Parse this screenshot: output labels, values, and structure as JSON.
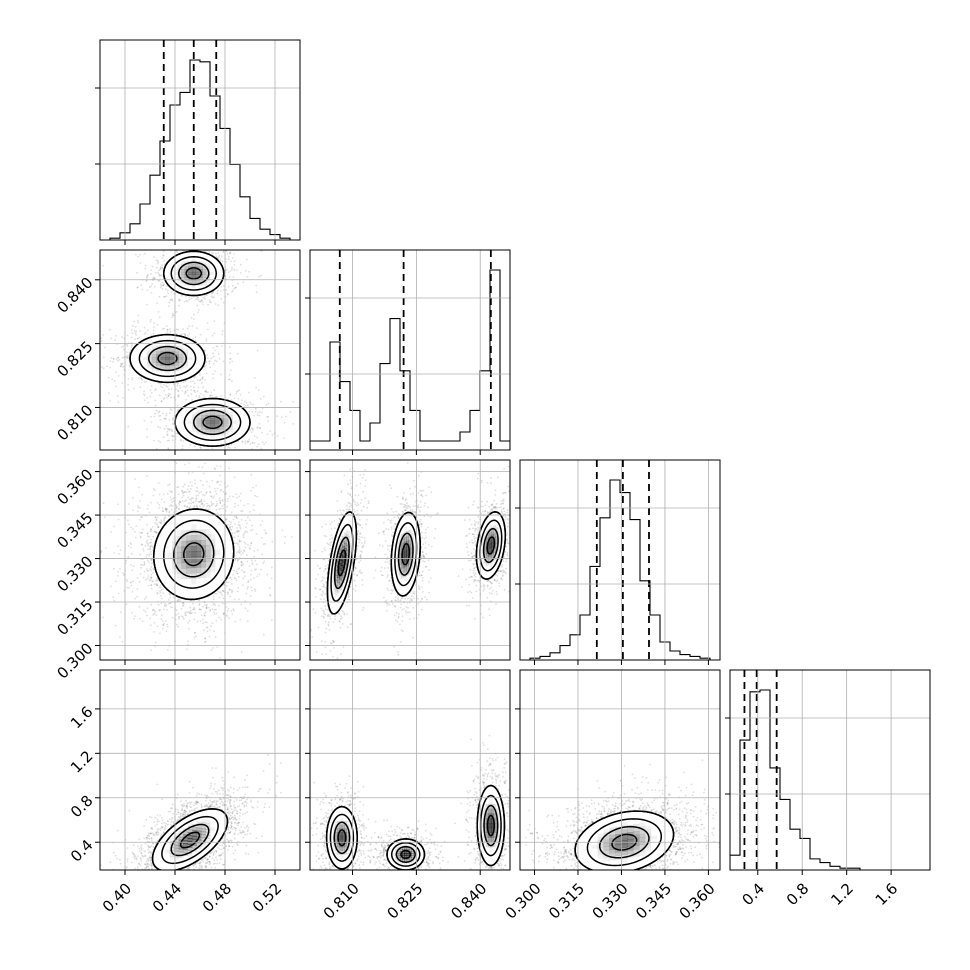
{
  "chart_data": {
    "type": "corner",
    "title": "",
    "grid": true,
    "parameters": [
      {
        "index": 0,
        "range": [
          0.38,
          0.54
        ],
        "ticks": [
          0.4,
          0.44,
          0.48,
          0.52
        ],
        "tick_labels": [
          "0.40",
          "0.44",
          "0.48",
          "0.52"
        ]
      },
      {
        "index": 1,
        "range": [
          0.8,
          0.847
        ],
        "ticks": [
          0.81,
          0.825,
          0.84
        ],
        "tick_labels": [
          "0.810",
          "0.825",
          "0.840"
        ]
      },
      {
        "index": 2,
        "range": [
          0.295,
          0.364
        ],
        "ticks": [
          0.3,
          0.315,
          0.33,
          0.345,
          0.36
        ],
        "tick_labels": [
          "0.300",
          "0.315",
          "0.330",
          "0.345",
          "0.360"
        ]
      },
      {
        "index": 3,
        "range": [
          0.15,
          1.95
        ],
        "ticks": [
          0.4,
          0.8,
          1.2,
          1.6
        ],
        "tick_labels": [
          "0.4",
          "0.8",
          "1.2",
          "1.6"
        ]
      }
    ],
    "quantiles": [
      [
        0.431,
        0.455,
        0.473
      ],
      [
        0.807,
        0.822,
        0.8425
      ],
      [
        0.3215,
        0.3305,
        0.3395
      ],
      [
        0.28,
        0.39,
        0.57
      ]
    ],
    "histograms": [
      {
        "param": 0,
        "edges_range": [
          0.38,
          0.54
        ],
        "bins": 20,
        "counts": [
          0,
          1,
          4,
          9,
          20,
          36,
          55,
          75,
          82,
          100,
          99,
          80,
          62,
          42,
          24,
          12,
          6,
          3,
          1,
          0
        ]
      },
      {
        "param": 1,
        "edges_range": [
          0.8,
          0.847
        ],
        "bins": 20,
        "counts": [
          5,
          5,
          60,
          38,
          22,
          5,
          15,
          48,
          73,
          44,
          22,
          5,
          5,
          5,
          5,
          10,
          22,
          44,
          100,
          5
        ]
      },
      {
        "param": 2,
        "edges_range": [
          0.295,
          0.364
        ],
        "bins": 20,
        "counts": [
          0,
          1,
          2,
          4,
          8,
          14,
          25,
          52,
          79,
          100,
          93,
          78,
          44,
          25,
          10,
          5,
          3,
          2,
          1,
          0
        ]
      },
      {
        "param": 3,
        "edges_range": [
          0.15,
          1.95
        ],
        "bins": 20,
        "counts": [
          8,
          70,
          96,
          97,
          55,
          38,
          22,
          17,
          6,
          4,
          2,
          1,
          1,
          0,
          0,
          0,
          0,
          0,
          0,
          0
        ]
      }
    ],
    "pair_modes": [
      {
        "params": [
          0,
          1
        ],
        "modes": [
          {
            "x": 0.455,
            "y": 0.8415,
            "sx": 0.012,
            "sy": 0.0026,
            "rho": 0.0,
            "weight": 1.0
          },
          {
            "x": 0.434,
            "y": 0.8215,
            "sx": 0.015,
            "sy": 0.0028,
            "rho": 0.0,
            "weight": 1.0
          },
          {
            "x": 0.47,
            "y": 0.8065,
            "sx": 0.015,
            "sy": 0.0028,
            "rho": 0.0,
            "weight": 1.0
          }
        ]
      },
      {
        "params": [
          0,
          2
        ],
        "modes": [
          {
            "x": 0.455,
            "y": 0.3315,
            "sx": 0.016,
            "sy": 0.0078,
            "rho": 0.05,
            "weight": 1.0
          }
        ]
      },
      {
        "params": [
          1,
          2
        ],
        "modes": [
          {
            "x": 0.8075,
            "y": 0.3285,
            "sx": 0.0017,
            "sy": 0.0088,
            "rho": 0.55,
            "weight": 1.0
          },
          {
            "x": 0.8225,
            "y": 0.3315,
            "sx": 0.0017,
            "sy": 0.0072,
            "rho": 0.2,
            "weight": 1.0
          },
          {
            "x": 0.8425,
            "y": 0.3345,
            "sx": 0.0017,
            "sy": 0.0058,
            "rho": 0.3,
            "weight": 1.0
          }
        ]
      },
      {
        "params": [
          0,
          3
        ],
        "modes": [
          {
            "x": 0.452,
            "y": 0.42,
            "sx": 0.015,
            "sy": 0.14,
            "rho": 0.6,
            "weight": 1.0
          }
        ]
      },
      {
        "params": [
          1,
          3
        ],
        "modes": [
          {
            "x": 0.8075,
            "y": 0.44,
            "sx": 0.0018,
            "sy": 0.14,
            "rho": 0.0,
            "weight": 1.0
          },
          {
            "x": 0.8225,
            "y": 0.29,
            "sx": 0.0022,
            "sy": 0.07,
            "rho": 0.0,
            "weight": 1.0
          },
          {
            "x": 0.8425,
            "y": 0.55,
            "sx": 0.0016,
            "sy": 0.18,
            "rho": 0.0,
            "weight": 1.0
          }
        ]
      },
      {
        "params": [
          2,
          3
        ],
        "modes": [
          {
            "x": 0.331,
            "y": 0.4,
            "sx": 0.0085,
            "sy": 0.14,
            "rho": 0.25,
            "weight": 1.0
          }
        ]
      }
    ],
    "contour_levels_sigma": [
      0.5,
      1.0,
      1.5,
      2.0
    ],
    "colors": {
      "line": "#000000",
      "grid": "#b0b0b0",
      "points": "#000000",
      "background": "#ffffff"
    }
  }
}
